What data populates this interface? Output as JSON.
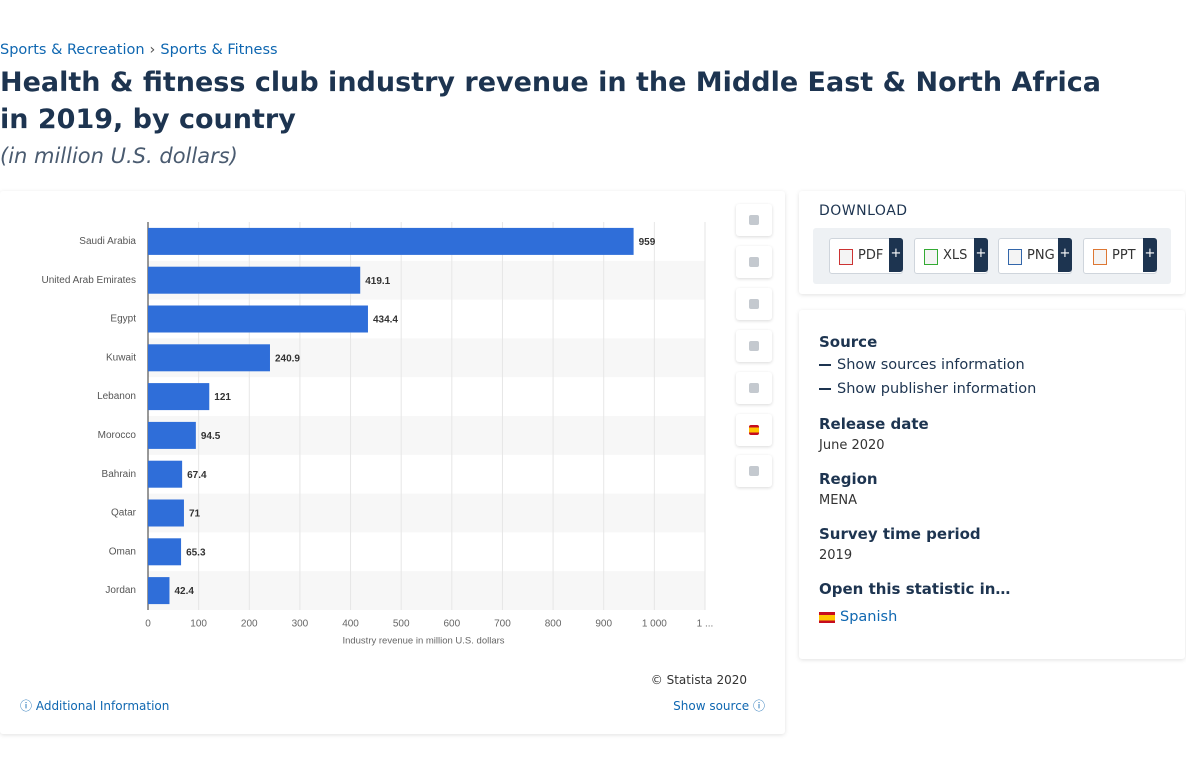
{
  "breadcrumbs": [
    "Sports & Recreation",
    "Sports & Fitness"
  ],
  "title": "Health & fitness club industry revenue in the Middle East & North Africa in 2019, by country",
  "subtitle": "(in million U.S. dollars)",
  "chart_data": {
    "type": "bar",
    "orientation": "horizontal",
    "x_label": "Industry revenue in million U.S. dollars",
    "categories": [
      "Saudi Arabia",
      "United Arab Emirates",
      "Egypt",
      "Kuwait",
      "Lebanon",
      "Morocco",
      "Bahrain",
      "Qatar",
      "Oman",
      "Jordan"
    ],
    "values": [
      959,
      419.1,
      434.4,
      240.9,
      121,
      94.5,
      67.4,
      71,
      65.3,
      42.4
    ],
    "color": "#2f6ed9",
    "xlim": [
      0,
      1100
    ],
    "xticks": [
      0,
      100,
      200,
      300,
      400,
      500,
      600,
      700,
      800,
      900,
      {
        "value": 1000,
        "label": "1 000"
      },
      {
        "value": 1100,
        "label": "1 ..."
      }
    ],
    "grid": true
  },
  "copyright": "© Statista 2020",
  "additional_info": "Additional Information",
  "show_source": "Show source",
  "download": {
    "title": "DOWNLOAD",
    "formats": [
      "PDF",
      "XLS",
      "PNG",
      "PPT"
    ],
    "plus": "+"
  },
  "details": {
    "source_heading": "Source",
    "show_sources": "Show sources information",
    "show_publisher": "Show publisher information",
    "release_heading": "Release date",
    "release": "June 2020",
    "region_heading": "Region",
    "region": "MENA",
    "survey_heading": "Survey time period",
    "survey": "2019",
    "open_heading": "Open this statistic in…",
    "language": "Spanish"
  }
}
